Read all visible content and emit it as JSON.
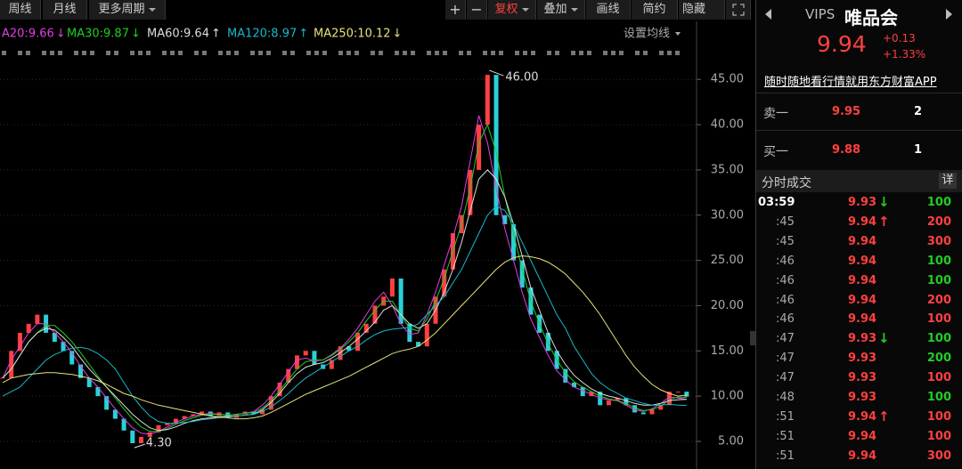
{
  "toolbar": {
    "left": [
      "周线",
      "月线",
      "更多周期"
    ],
    "plus": "+",
    "minus": "−",
    "adjust": "复权",
    "overlay": "叠加",
    "draw": "画线",
    "simple": "简约",
    "hide": "隐藏"
  },
  "chart_data": {
    "type": "candlestick",
    "ma_settings": "设置均线",
    "values": [
      12,
      15,
      17,
      18,
      19,
      17,
      16,
      15,
      13.5,
      12,
      11,
      10,
      8.5,
      7.5,
      6.2,
      4.8,
      5.5,
      6,
      6.8,
      7,
      7.5,
      7.8,
      8,
      8.3,
      7.8,
      8.2,
      7.6,
      8,
      8.3,
      8,
      8.5,
      10,
      11.5,
      13,
      14.5,
      15,
      13.5,
      13,
      14,
      15.5,
      15,
      17,
      18,
      20,
      21,
      23,
      18,
      16,
      15.5,
      18,
      21,
      24,
      28,
      30,
      35,
      40,
      45.5,
      30,
      29,
      25,
      22,
      19,
      17,
      15,
      13,
      11.5,
      11,
      10,
      10.5,
      9,
      9.5,
      9.8,
      9,
      8.2,
      8,
      8.5,
      9,
      10.5,
      10.5,
      9.94
    ],
    "up_color": "#ff4040",
    "down_color": "#2ad0d8",
    "series": [
      {
        "name": "A20:9.66",
        "trend": "↓",
        "color": "#e23ee2",
        "values": [
          12,
          14,
          15.5,
          17,
          18,
          18,
          17,
          16,
          14.8,
          13.3,
          12,
          11,
          9.8,
          8.6,
          7.5,
          6.5,
          5.9,
          5.8,
          6.1,
          6.6,
          7.1,
          7.5,
          7.8,
          8,
          8.1,
          8,
          7.9,
          8,
          8.1,
          8.3,
          9,
          10,
          11.3,
          12.7,
          14,
          14.2,
          13.9,
          14,
          14.6,
          15.3,
          16.3,
          17.5,
          19,
          20.5,
          21.5,
          20,
          18,
          16.8,
          17,
          19,
          21.5,
          24.5,
          27.5,
          31,
          36,
          41,
          38,
          33,
          28.5,
          25,
          21.5,
          18.5,
          16.5,
          14.5,
          12.8,
          11.8,
          11,
          10.6,
          10.2,
          9.8,
          9.6,
          9.5,
          9,
          8.5,
          8.3,
          8.6,
          9.2,
          9.9,
          9.8,
          9.66
        ]
      },
      {
        "name": "MA30:9.87",
        "trend": "↓",
        "color": "#22cc22",
        "values": [
          12,
          13,
          14.5,
          16,
          17,
          17.8,
          17.8,
          17,
          16,
          14.8,
          13.5,
          12.2,
          11,
          9.8,
          8.6,
          7.5,
          6.6,
          6.1,
          6.1,
          6.4,
          6.9,
          7.3,
          7.6,
          7.9,
          8,
          8,
          7.9,
          8,
          8.1,
          8.2,
          8.7,
          9.5,
          10.6,
          11.8,
          13,
          13.8,
          14,
          14,
          14.5,
          15.2,
          16,
          17,
          18.3,
          19.5,
          20.5,
          20.5,
          19,
          17.5,
          17.2,
          18.5,
          20.5,
          23,
          26,
          29,
          33,
          38,
          40,
          37,
          32,
          28,
          24,
          20.5,
          18,
          15.8,
          14,
          12.6,
          11.6,
          11,
          10.5,
          10,
          9.7,
          9.5,
          9.2,
          8.7,
          8.4,
          8.5,
          8.9,
          9.6,
          9.9,
          9.87
        ]
      },
      {
        "name": "MA60:9.64",
        "trend": "↑",
        "color": "#dddddd",
        "values": [
          12,
          13,
          14.5,
          16,
          17,
          17.5,
          17.3,
          16.5,
          15.5,
          14.2,
          13,
          12,
          11,
          10,
          9,
          8,
          7.2,
          6.5,
          6.2,
          6.3,
          6.6,
          7,
          7.3,
          7.5,
          7.6,
          7.7,
          7.8,
          7.8,
          7.9,
          8,
          8.5,
          9.3,
          10.3,
          11.5,
          12.5,
          13.2,
          13.5,
          13.7,
          14.2,
          14.8,
          15.5,
          16.3,
          17.2,
          18.2,
          19.5,
          20,
          19,
          18,
          17.5,
          18,
          19.5,
          21.5,
          24,
          27,
          30.5,
          34,
          35,
          34,
          32,
          29,
          25.5,
          22,
          19.5,
          17,
          15,
          13.5,
          12.3,
          11.5,
          10.8,
          10.3,
          10,
          9.8,
          9.5,
          9.2,
          9,
          9,
          9.2,
          9.5,
          9.6,
          9.64
        ]
      },
      {
        "name": "MA120:8.97",
        "trend": "↑",
        "color": "#1ab7c9",
        "values": [
          10,
          10.5,
          11,
          12,
          13,
          14,
          14.6,
          15,
          15.3,
          15.4,
          15.2,
          14.7,
          14,
          13,
          11.5,
          10,
          8.8,
          7.8,
          7.2,
          7,
          7,
          7.1,
          7.2,
          7.4,
          7.5,
          7.6,
          7.7,
          7.8,
          7.9,
          8,
          8.3,
          8.8,
          9.5,
          10.3,
          11.2,
          12,
          12.6,
          13.2,
          13.8,
          14.4,
          15,
          15.5,
          16.2,
          16.8,
          17.2,
          17.4,
          17.5,
          17.6,
          18,
          19,
          20,
          21,
          22.5,
          24,
          26,
          28,
          30,
          31,
          30.5,
          29,
          27,
          25,
          23,
          21,
          19,
          17.5,
          15.5,
          14,
          12.5,
          11.5,
          10.8,
          10.3,
          9.8,
          9.5,
          9.2,
          9,
          9,
          9.1,
          9,
          8.97
        ]
      },
      {
        "name": "MA250:10.12",
        "trend": "↓",
        "color": "#e8e27a",
        "values": [
          11.5,
          12,
          12.2,
          12.4,
          12.5,
          12.6,
          12.6,
          12.5,
          12.4,
          12.2,
          12,
          11.7,
          11.3,
          10.8,
          10.3,
          10,
          9.6,
          9.3,
          9,
          8.8,
          8.6,
          8.4,
          8.2,
          8,
          7.8,
          7.7,
          7.6,
          7.5,
          7.5,
          7.6,
          7.8,
          8.2,
          8.7,
          9.2,
          9.7,
          10.2,
          10.6,
          11,
          11.4,
          11.8,
          12.2,
          12.7,
          13.2,
          13.7,
          14.2,
          14.7,
          15,
          15.2,
          15.5,
          16.2,
          17,
          18,
          19,
          20,
          21,
          22,
          23,
          24,
          24.8,
          25.3,
          25.5,
          25.4,
          25.2,
          24.8,
          24.2,
          23.5,
          22.5,
          21.5,
          20.3,
          19,
          17.5,
          16,
          14.5,
          13.2,
          12.2,
          11.3,
          10.7,
          10.3,
          10,
          10.12
        ]
      }
    ],
    "high_label": "46.00",
    "low_label": "4.30",
    "ylim": [
      1.95,
      46.3
    ],
    "yticks": [
      {
        "value": 5,
        "label": "5.00"
      },
      {
        "value": 10,
        "label": "10.00"
      },
      {
        "value": 15,
        "label": "15.00"
      },
      {
        "value": 20,
        "label": "20.00"
      },
      {
        "value": 25,
        "label": "25.00"
      },
      {
        "value": 30,
        "label": "30.00"
      },
      {
        "value": 35,
        "label": "35.00"
      },
      {
        "value": 40,
        "label": "40.00"
      },
      {
        "value": 45,
        "label": "45.00"
      }
    ],
    "grid": true
  },
  "quote": {
    "symbol": "VIPS",
    "name": "唯品会",
    "price": "9.94",
    "change": "+0.13",
    "change_pct": "+1.33%",
    "promo": "随时随地看行情就用东方财富APP",
    "ask": {
      "label": "卖一",
      "price": "9.95",
      "volume": "2"
    },
    "bid": {
      "label": "买一",
      "price": "9.88",
      "volume": "1"
    },
    "trades_title": "分时成交",
    "detail": "详",
    "trades": [
      {
        "time": "03:59",
        "price": "9.93",
        "arrow": "↓",
        "volume": "100",
        "color": "#22cc22"
      },
      {
        "time": ":45",
        "price": "9.94",
        "arrow": "↑",
        "volume": "200",
        "color": "#ff4040"
      },
      {
        "time": ":45",
        "price": "9.94",
        "volume": "300",
        "color": "#ff4040"
      },
      {
        "time": ":46",
        "price": "9.94",
        "volume": "100",
        "color": "#22cc22"
      },
      {
        "time": ":46",
        "price": "9.94",
        "volume": "100",
        "color": "#22cc22"
      },
      {
        "time": ":46",
        "price": "9.94",
        "volume": "200",
        "color": "#ff4040"
      },
      {
        "time": ":46",
        "price": "9.94",
        "volume": "100",
        "color": "#ff4040"
      },
      {
        "time": ":47",
        "price": "9.93",
        "arrow": "↓",
        "volume": "100",
        "color": "#22cc22"
      },
      {
        "time": ":47",
        "price": "9.93",
        "volume": "200",
        "color": "#22cc22"
      },
      {
        "time": ":47",
        "price": "9.93",
        "volume": "100",
        "color": "#ff4040"
      },
      {
        "time": ":48",
        "price": "9.93",
        "volume": "100",
        "color": "#22cc22"
      },
      {
        "time": ":51",
        "price": "9.94",
        "arrow": "↑",
        "volume": "100",
        "color": "#ff4040"
      },
      {
        "time": ":51",
        "price": "9.94",
        "volume": "100",
        "color": "#ff4040"
      },
      {
        "time": ":51",
        "price": "9.94",
        "volume": "300",
        "color": "#ff4040"
      }
    ]
  }
}
